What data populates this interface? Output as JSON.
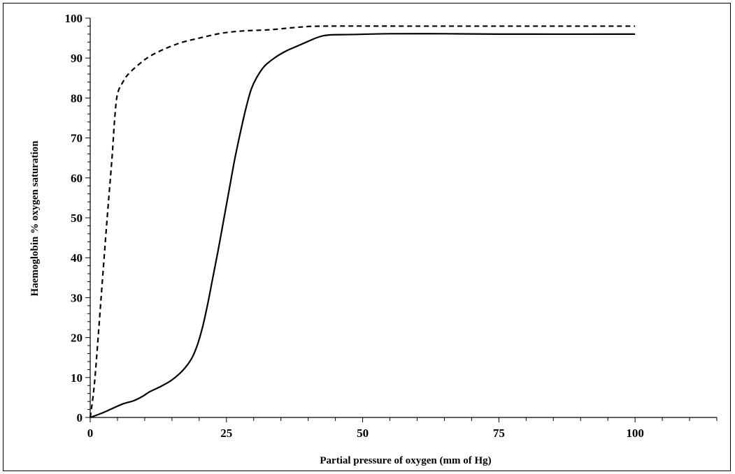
{
  "chart_data": {
    "type": "line",
    "title": "",
    "xlabel": "Partial pressure of oxygen (mm of Hg)",
    "ylabel": "Haemoglobin % oxygen saturation",
    "xlim": [
      0,
      115
    ],
    "ylim": [
      0,
      100
    ],
    "x_ticks": [
      0,
      25,
      50,
      75,
      100
    ],
    "y_ticks": [
      0,
      10,
      20,
      30,
      40,
      50,
      60,
      70,
      80,
      90,
      100
    ],
    "grid": false,
    "legend": "none",
    "series": [
      {
        "style": "dashed",
        "color": "#000000",
        "points": [
          [
            0,
            0
          ],
          [
            0.5,
            5
          ],
          [
            1,
            12
          ],
          [
            2,
            30
          ],
          [
            3,
            48
          ],
          [
            4,
            65
          ],
          [
            4.5,
            75
          ],
          [
            5,
            81
          ],
          [
            6,
            84
          ],
          [
            7,
            86
          ],
          [
            9,
            88.5
          ],
          [
            11,
            90.5
          ],
          [
            14,
            92.5
          ],
          [
            17,
            94
          ],
          [
            20,
            95
          ],
          [
            24,
            96.2
          ],
          [
            28,
            96.8
          ],
          [
            33,
            97.1
          ],
          [
            38,
            97.7
          ],
          [
            43,
            98
          ],
          [
            60,
            98
          ],
          [
            80,
            98
          ],
          [
            100,
            98
          ]
        ]
      },
      {
        "style": "solid",
        "color": "#000000",
        "points": [
          [
            0,
            0
          ],
          [
            2,
            1
          ],
          [
            4,
            2.2
          ],
          [
            6,
            3.4
          ],
          [
            8,
            4.2
          ],
          [
            9.5,
            5.2
          ],
          [
            11,
            6.5
          ],
          [
            13,
            7.8
          ],
          [
            15,
            9.4
          ],
          [
            17,
            11.8
          ],
          [
            18.5,
            14.5
          ],
          [
            19.5,
            17.5
          ],
          [
            20.5,
            22
          ],
          [
            21.5,
            28
          ],
          [
            22.5,
            35
          ],
          [
            23.5,
            42
          ],
          [
            24.5,
            49.5
          ],
          [
            25.5,
            57
          ],
          [
            26.5,
            64.5
          ],
          [
            27.5,
            71
          ],
          [
            28.5,
            77
          ],
          [
            29.5,
            82
          ],
          [
            30.5,
            85
          ],
          [
            32,
            88
          ],
          [
            34,
            90.2
          ],
          [
            36,
            91.8
          ],
          [
            38,
            93
          ],
          [
            40,
            94.2
          ],
          [
            42,
            95.3
          ],
          [
            44,
            95.8
          ],
          [
            48,
            95.9
          ],
          [
            55,
            96.1
          ],
          [
            65,
            96.1
          ],
          [
            75,
            96
          ],
          [
            100,
            96
          ]
        ]
      }
    ]
  }
}
